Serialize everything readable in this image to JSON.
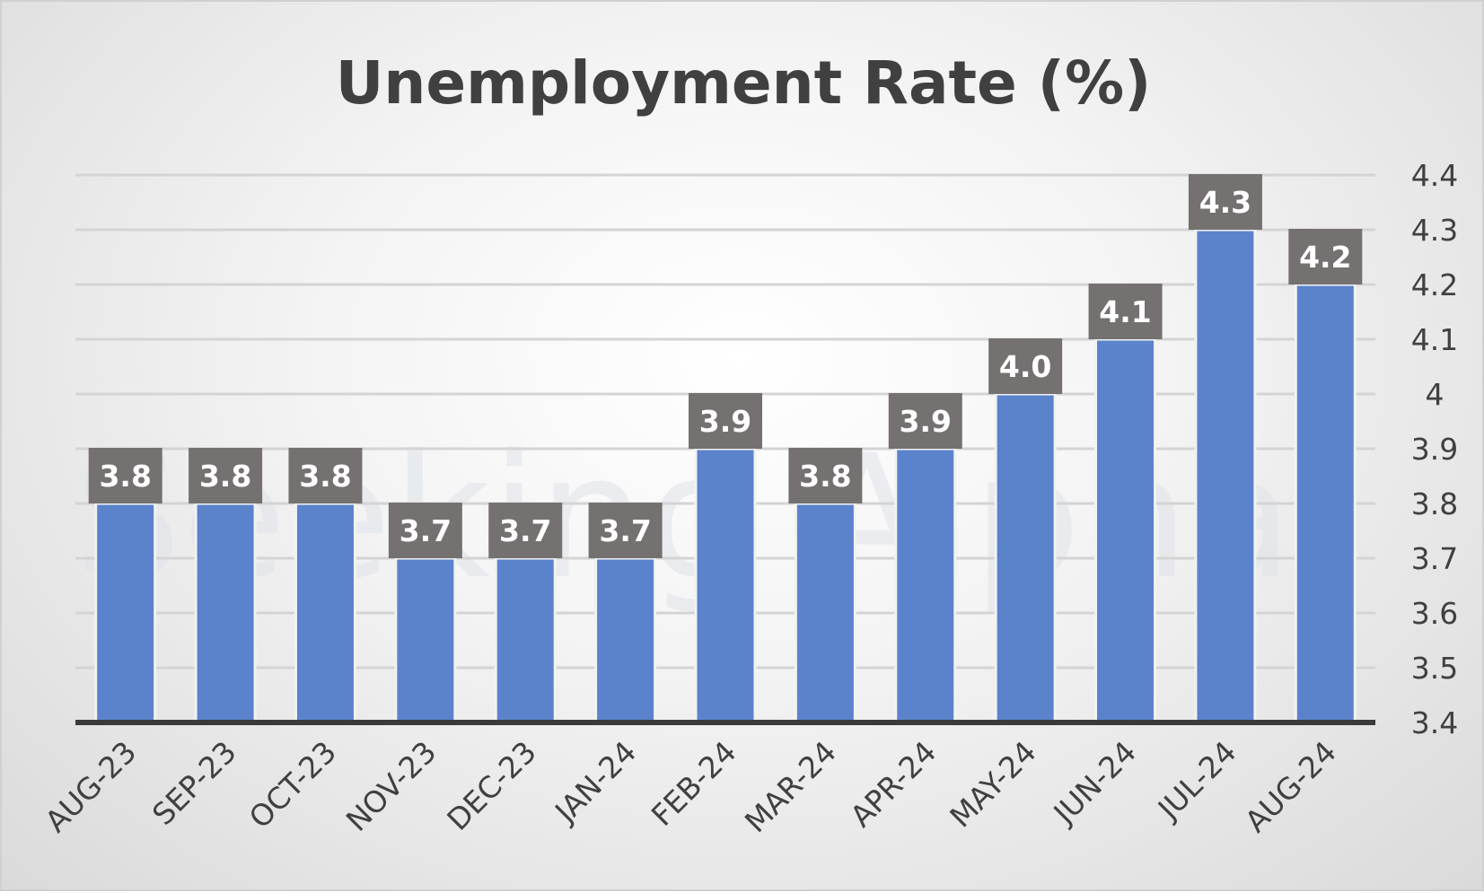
{
  "chart_data": {
    "type": "bar",
    "title": "Unemployment Rate (%)",
    "watermark": "Seeking Alpha",
    "categories": [
      "AUG-23",
      "SEP-23",
      "OCT-23",
      "NOV-23",
      "DEC-23",
      "JAN-24",
      "FEB-24",
      "MAR-24",
      "APR-24",
      "MAY-24",
      "JUN-24",
      "JUL-24",
      "AUG-24"
    ],
    "values": [
      3.8,
      3.8,
      3.8,
      3.7,
      3.7,
      3.7,
      3.9,
      3.8,
      3.9,
      4.0,
      4.1,
      4.3,
      4.2
    ],
    "data_labels": [
      "3.8",
      "3.8",
      "3.8",
      "3.7",
      "3.7",
      "3.7",
      "3.9",
      "3.8",
      "3.9",
      "4.0",
      "4.1",
      "4.3",
      "4.2"
    ],
    "ylim": [
      3.4,
      4.4
    ],
    "yticks": [
      3.4,
      3.5,
      3.6,
      3.7,
      3.8,
      3.9,
      4,
      4.1,
      4.2,
      4.3,
      4.4
    ],
    "ytick_labels": [
      "3.4",
      "3.5",
      "3.6",
      "3.7",
      "3.8",
      "3.9",
      "4",
      "4.1",
      "4.2",
      "4.3",
      "4.4"
    ],
    "yaxis_position": "right",
    "grid": true,
    "legend": "none",
    "colors": {
      "bar": "#5b83cc",
      "label_box": "#767171",
      "title": "#404040",
      "grid": "#d4d4d4",
      "axis": "#3a3a3a"
    }
  }
}
